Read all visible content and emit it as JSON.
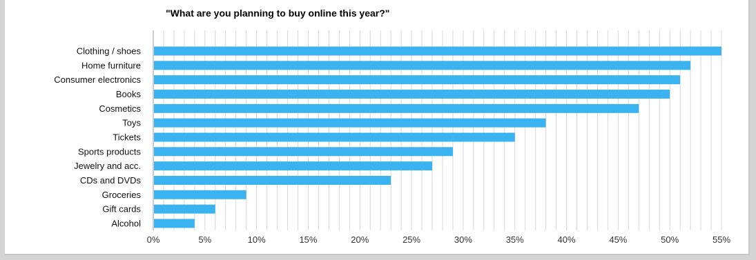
{
  "chart_data": {
    "type": "bar",
    "orientation": "horizontal",
    "title": "\"What are you planning to buy online this year?\"",
    "categories": [
      "Clothing / shoes",
      "Home furniture",
      "Consumer electronics",
      "Books",
      "Cosmetics",
      "Toys",
      "Tickets",
      "Sports products",
      "Jewelry and acc.",
      "CDs and DVDs",
      "Groceries",
      "Gift cards",
      "Alcohol"
    ],
    "values": [
      55,
      52,
      51,
      50,
      47,
      38,
      35,
      29,
      27,
      23,
      9,
      6,
      4
    ],
    "xlim": [
      0,
      55
    ],
    "x_ticks": [
      0,
      5,
      10,
      15,
      20,
      25,
      30,
      35,
      40,
      45,
      50,
      55
    ],
    "x_tick_labels": [
      "0%",
      "5%",
      "10%",
      "15%",
      "20%",
      "25%",
      "30%",
      "35%",
      "40%",
      "45%",
      "50%",
      "55%"
    ],
    "minor_grid_step": 1,
    "grid": true,
    "legend": "none",
    "colors": {
      "bar": "#3bb3f0",
      "grid": "#d8d8d8",
      "axis": "#9a9a9a"
    }
  }
}
